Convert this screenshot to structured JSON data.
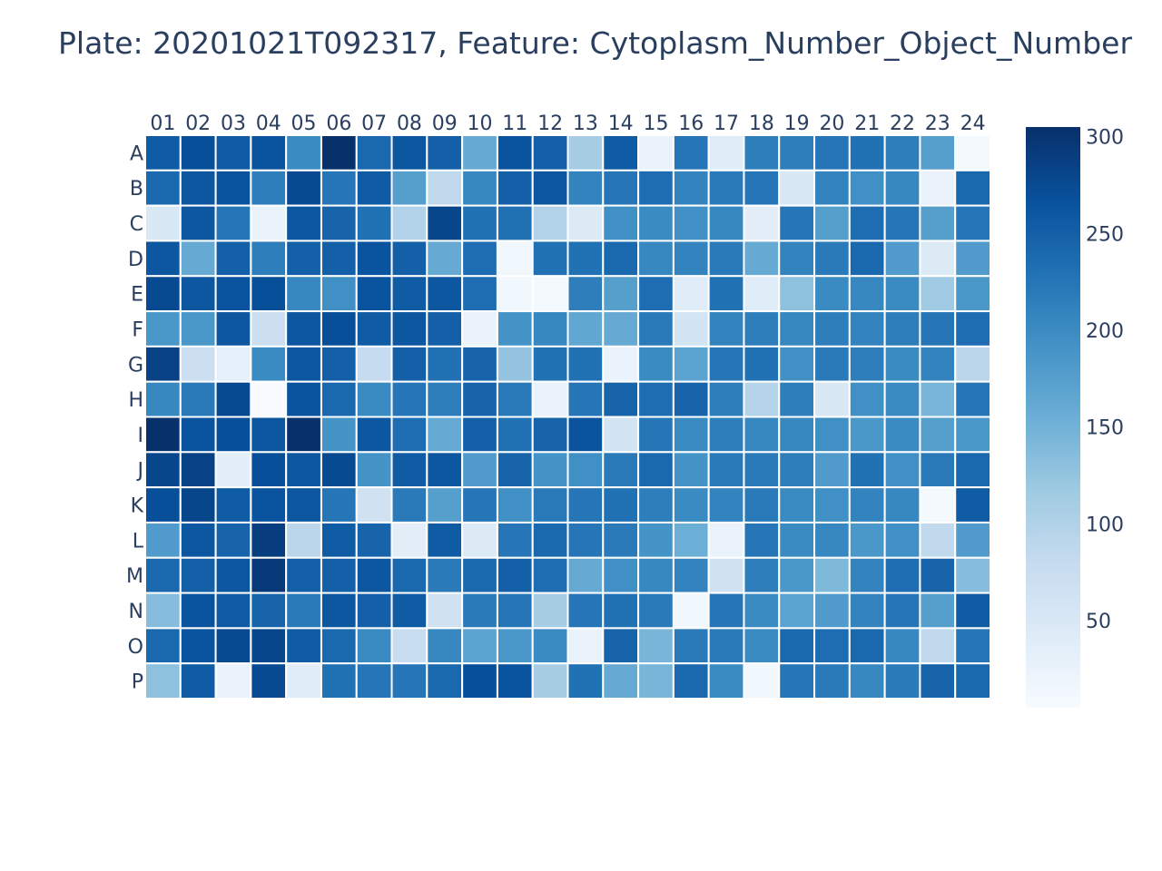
{
  "chart_data": {
    "type": "heatmap",
    "title": "Plate: 20201021T092317, Feature: Cytoplasm_Number_Object_Number",
    "xlabel": "",
    "ylabel": "",
    "columns": [
      "01",
      "02",
      "03",
      "04",
      "05",
      "06",
      "07",
      "08",
      "09",
      "10",
      "11",
      "12",
      "13",
      "14",
      "15",
      "16",
      "17",
      "18",
      "19",
      "20",
      "21",
      "22",
      "23",
      "24"
    ],
    "rows": [
      "A",
      "B",
      "C",
      "D",
      "E",
      "F",
      "G",
      "H",
      "I",
      "J",
      "K",
      "L",
      "M",
      "N",
      "O",
      "P"
    ],
    "values": [
      [
        255,
        270,
        255,
        265,
        200,
        305,
        240,
        260,
        250,
        160,
        265,
        250,
        110,
        255,
        25,
        225,
        40,
        215,
        215,
        225,
        230,
        215,
        175,
        10
      ],
      [
        240,
        260,
        265,
        215,
        275,
        225,
        255,
        175,
        85,
        205,
        250,
        260,
        210,
        225,
        235,
        210,
        220,
        225,
        50,
        210,
        195,
        205,
        25,
        240
      ],
      [
        50,
        260,
        225,
        25,
        260,
        245,
        230,
        100,
        280,
        230,
        230,
        100,
        45,
        195,
        200,
        195,
        205,
        35,
        225,
        175,
        235,
        225,
        175,
        225
      ],
      [
        260,
        160,
        250,
        215,
        250,
        250,
        265,
        250,
        160,
        235,
        15,
        230,
        230,
        240,
        205,
        210,
        220,
        160,
        210,
        220,
        240,
        180,
        45,
        180
      ],
      [
        275,
        260,
        265,
        270,
        205,
        195,
        265,
        255,
        260,
        235,
        15,
        10,
        215,
        175,
        235,
        40,
        230,
        40,
        130,
        200,
        205,
        200,
        115,
        185
      ],
      [
        185,
        185,
        260,
        70,
        260,
        270,
        255,
        260,
        250,
        25,
        190,
        205,
        165,
        160,
        220,
        60,
        210,
        215,
        205,
        215,
        210,
        215,
        225,
        235
      ],
      [
        285,
        70,
        30,
        200,
        260,
        250,
        80,
        250,
        230,
        245,
        125,
        230,
        230,
        25,
        200,
        170,
        225,
        230,
        195,
        220,
        215,
        200,
        210,
        90
      ],
      [
        205,
        220,
        275,
        5,
        265,
        240,
        200,
        225,
        215,
        245,
        220,
        25,
        225,
        245,
        235,
        245,
        215,
        95,
        215,
        50,
        195,
        200,
        145,
        225
      ],
      [
        310,
        265,
        270,
        260,
        310,
        190,
        260,
        235,
        160,
        250,
        230,
        245,
        265,
        60,
        225,
        200,
        215,
        205,
        205,
        195,
        185,
        200,
        175,
        185
      ],
      [
        280,
        285,
        35,
        270,
        260,
        275,
        190,
        255,
        260,
        180,
        245,
        190,
        195,
        220,
        240,
        190,
        220,
        220,
        215,
        180,
        230,
        195,
        220,
        240
      ],
      [
        270,
        280,
        255,
        265,
        260,
        225,
        65,
        220,
        175,
        225,
        195,
        220,
        225,
        230,
        215,
        200,
        210,
        220,
        200,
        195,
        210,
        205,
        10,
        255
      ],
      [
        180,
        260,
        245,
        290,
        90,
        255,
        245,
        35,
        255,
        45,
        225,
        240,
        225,
        220,
        190,
        155,
        25,
        225,
        200,
        205,
        185,
        195,
        85,
        180
      ],
      [
        240,
        250,
        260,
        295,
        250,
        250,
        260,
        240,
        220,
        240,
        250,
        235,
        160,
        195,
        205,
        210,
        65,
        215,
        185,
        140,
        210,
        235,
        245,
        135
      ],
      [
        135,
        265,
        255,
        245,
        220,
        260,
        250,
        255,
        65,
        220,
        225,
        110,
        225,
        230,
        220,
        15,
        225,
        200,
        170,
        180,
        210,
        225,
        175,
        255
      ],
      [
        240,
        265,
        275,
        280,
        255,
        240,
        200,
        75,
        205,
        170,
        185,
        200,
        25,
        245,
        145,
        220,
        220,
        200,
        240,
        235,
        240,
        205,
        85,
        225
      ],
      [
        130,
        255,
        25,
        275,
        40,
        230,
        225,
        225,
        240,
        270,
        265,
        110,
        230,
        160,
        145,
        240,
        200,
        15,
        225,
        220,
        205,
        220,
        245,
        240
      ]
    ],
    "zmin": 5,
    "zmax": 305,
    "colorscale": "Blues",
    "colorbar_ticks": [
      50,
      100,
      150,
      200,
      250,
      300
    ],
    "colors": {
      "title": "#2a3f5f",
      "tick_text": "#2a3f5f",
      "cell_border": "#ffffff",
      "scale": [
        "#f7fbff",
        "#deebf7",
        "#c6dbef",
        "#9ecae1",
        "#6baed6",
        "#4292c6",
        "#2171b5",
        "#08519c",
        "#08306b"
      ]
    }
  }
}
